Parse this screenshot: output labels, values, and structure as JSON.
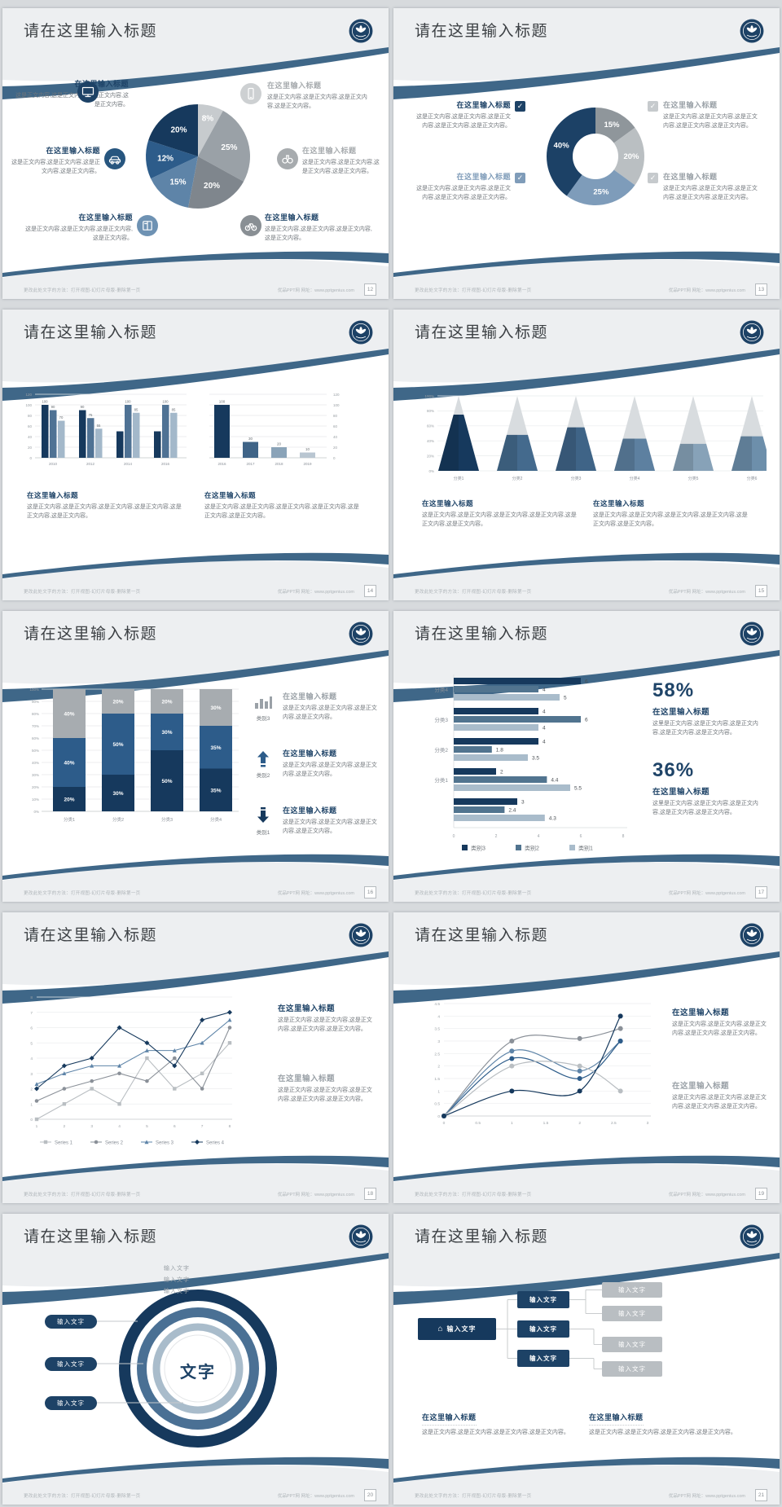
{
  "page": {
    "background": "#d7dadd"
  },
  "footer": {
    "left": "更改此处文字的方法：打开视图-幻灯片母版-删除第一页",
    "right": "优品PPT网  网址：www.pptgenius.com"
  },
  "strings": {
    "slide_title": "请在这里输入标题",
    "item_heading": "在这里输入标题",
    "input_text": "输入文字",
    "center_text": "文字"
  },
  "bodies": {
    "b2": "这是正文内容,这是正文内容,这是正文内容,这是正文内容。",
    "b3": "这是正文内容,这是正文内容,这是正文内容,这是正文内容,这是正文内容。",
    "b4": "这是正文内容,这是正文内容,这是正文内容,这是正文内容,这是正文内容,这是正文内容。",
    "b58": "这里是正文内容,这是正文内容,这是正文内容,这是正文内容,这是正文内容。"
  },
  "slides": [
    {
      "page_no": "12",
      "title": "请在这里输入标题",
      "type": "pie",
      "chart_data": {
        "type": "pie",
        "unit": "%",
        "slices": [
          {
            "label": "8%",
            "value": 8,
            "color": "#c7cbce"
          },
          {
            "label": "25%",
            "value": 25,
            "color": "#9aa1a7"
          },
          {
            "label": "20%",
            "value": 20,
            "color": "#7f868d"
          },
          {
            "label": "15%",
            "value": 15,
            "color": "#5e84a8"
          },
          {
            "label": "12%",
            "value": 12,
            "color": "#2d5c8a"
          },
          {
            "label": "20%",
            "value": 20,
            "color": "#16395d"
          }
        ]
      },
      "items_left": [
        {
          "icon": "monitor-icon",
          "icon_color": "#1d4266",
          "heading_color": "#1f4468",
          "body_key": "b2"
        },
        {
          "icon": "car-icon",
          "icon_color": "#27567f",
          "heading_color": "#1f4468",
          "body_key": "b2"
        },
        {
          "icon": "book-icon",
          "icon_color": "#6e92b3",
          "heading_color": "#1f4468",
          "body_key": "b2"
        }
      ],
      "items_right": [
        {
          "icon": "phone-icon",
          "icon_color": "#cdd0d2",
          "heading_color": "#a7abae",
          "body_key": "b2"
        },
        {
          "icon": "binoculars-icon",
          "icon_color": "#a7abae",
          "heading_color": "#a7abae",
          "body_key": "b2"
        },
        {
          "icon": "bicycle-icon",
          "icon_color": "#898f94",
          "heading_color": "#1f4468",
          "body_key": "b2"
        }
      ]
    },
    {
      "page_no": "13",
      "title": "请在这里输入标题",
      "type": "donut",
      "chart_data": {
        "type": "donut",
        "unit": "%",
        "slices": [
          {
            "label": "15%",
            "value": 15,
            "color": "#8f969b"
          },
          {
            "label": "20%",
            "value": 20,
            "color": "#babfc2"
          },
          {
            "label": "25%",
            "value": 25,
            "color": "#7e9cba"
          },
          {
            "label": "40%",
            "value": 40,
            "color": "#1c4166"
          }
        ]
      },
      "items_left": [
        {
          "heading_color": "#1d4266",
          "check_color": "#1d4266",
          "body_key": "b3"
        },
        {
          "heading_color": "#7f9cb9",
          "check_color": "#7f9cb9",
          "body_key": "b3"
        }
      ],
      "items_right": [
        {
          "heading_color": "#9aa1a7",
          "check_color": "#c6cacd",
          "body_key": "b3"
        },
        {
          "heading_color": "#9aa1a7",
          "check_color": "#c6cacd",
          "body_key": "b3"
        }
      ]
    },
    {
      "page_no": "14",
      "title": "请在这里输入标题",
      "type": "bars2",
      "chart_data": [
        {
          "type": "bar",
          "categories": [
            "2010",
            "2012",
            "2014",
            "2016"
          ],
          "ylim": [
            0,
            120
          ],
          "y_ticks": [
            0,
            20,
            40,
            60,
            80,
            100,
            120
          ],
          "groups": [
            [
              100,
              90,
              70
            ],
            [
              90,
              75,
              55
            ],
            [
              50,
              100,
              85
            ],
            [
              50,
              100,
              85
            ]
          ],
          "group_labels": [
            [
              "100",
              "90",
              "70"
            ],
            [
              "90",
              "75",
              "55"
            ],
            [
              "",
              "100",
              "85"
            ],
            [
              "",
              "100",
              "85"
            ]
          ],
          "colors": [
            "#16395d",
            "#4f7294",
            "#a3b8ca"
          ]
        },
        {
          "type": "bar",
          "categories": [
            "2016",
            "2017",
            "2018",
            "2019"
          ],
          "ylim": [
            0,
            120
          ],
          "y_ticks": [
            0,
            20,
            40,
            60,
            80,
            100,
            120
          ],
          "axis_side": "right",
          "values": [
            100,
            30,
            20,
            10
          ],
          "labels": [
            "100",
            "30",
            "20",
            "10"
          ],
          "colors": [
            "#16395d",
            "#3f6487",
            "#8aa3b8",
            "#b9c6d1"
          ]
        }
      ],
      "blocks": [
        {
          "heading_color": "#1f4468",
          "body_key": "b4"
        },
        {
          "heading_color": "#1f4468",
          "body_key": "b4"
        }
      ]
    },
    {
      "page_no": "15",
      "title": "请在这里输入标题",
      "type": "cone",
      "chart_data": {
        "type": "cone",
        "ylim": [
          0,
          100
        ],
        "y_ticks": [
          "0%",
          "20%",
          "40%",
          "60%",
          "80%",
          "100%"
        ],
        "categories": [
          "分类1",
          "分类2",
          "分类3",
          "分类4",
          "分类5",
          "分类6"
        ],
        "values": [
          75,
          48,
          58,
          43,
          36,
          46
        ],
        "colors": [
          "#16395d",
          "#446a8d",
          "#3f6487",
          "#5d80a0",
          "#87a2b8",
          "#6d8fab"
        ]
      },
      "blocks": [
        {
          "heading_color": "#1f4468",
          "body_key": "b4"
        },
        {
          "heading_color": "#1f4468",
          "body_key": "b4"
        }
      ]
    },
    {
      "page_no": "16",
      "title": "请在这里输入标题",
      "type": "stacked",
      "chart_data": {
        "type": "stacked-bar",
        "categories": [
          "分类1",
          "分类2",
          "分类3",
          "分类4"
        ],
        "y_ticks": [
          "0%",
          "10%",
          "20%",
          "30%",
          "40%",
          "50%",
          "60%",
          "70%",
          "80%",
          "90%",
          "100%"
        ],
        "series": [
          {
            "name": "bottom",
            "color": "#16395d",
            "values": [
              20,
              30,
              50,
              35
            ]
          },
          {
            "name": "middle",
            "color": "#2d5c8a",
            "values": [
              40,
              50,
              30,
              35
            ]
          },
          {
            "name": "top",
            "color": "#a7acb0",
            "values": [
              40,
              20,
              20,
              30
            ]
          }
        ],
        "labels": [
          [
            "20%",
            "40%",
            "40%"
          ],
          [
            "30%",
            "50%",
            "20%"
          ],
          [
            "50%",
            "30%",
            "20%"
          ],
          [
            "35%",
            "35%",
            "30%"
          ]
        ]
      },
      "items": [
        {
          "icon": "bar-chart-icon",
          "icon_color": "#9aa1a7",
          "tag": "类别3",
          "heading_color": "#9aa1a7",
          "body_key": "b2"
        },
        {
          "icon": "arrow-up-icon",
          "icon_color": "#2d5c8a",
          "tag": "类别2",
          "heading_color": "#1f4468",
          "body_key": "b2"
        },
        {
          "icon": "arrow-down-icon",
          "icon_color": "#16395d",
          "tag": "类别1",
          "heading_color": "#1f4468",
          "body_key": "b2"
        }
      ]
    },
    {
      "page_no": "17",
      "title": "请在这里输入标题",
      "type": "hbar",
      "chart_data": {
        "type": "bar-horizontal",
        "xlim": [
          0,
          8
        ],
        "x_ticks": [
          0,
          2,
          4,
          6,
          8
        ],
        "groups": [
          {
            "label": "分类4",
            "values": [
              6,
              4,
              5
            ]
          },
          {
            "label": "分类3",
            "values": [
              4,
              6,
              4
            ]
          },
          {
            "label": "分类2",
            "values": [
              4,
              1.8,
              3.5
            ]
          },
          {
            "label": "分类1",
            "values": [
              2,
              4.4,
              5.5
            ]
          },
          {
            "label": "",
            "values": [
              3,
              2.4,
              4.3
            ]
          }
        ],
        "legend": [
          {
            "name": "类别3",
            "color": "#16395d"
          },
          {
            "name": "类别2",
            "color": "#51748f"
          },
          {
            "name": "类别1",
            "color": "#a9bccb"
          }
        ]
      },
      "stats": [
        {
          "pct": "58%",
          "heading_color": "#1f4468",
          "body_key": "b58"
        },
        {
          "pct": "36%",
          "heading_color": "#1f4468",
          "body_key": "b58"
        }
      ]
    },
    {
      "page_no": "18",
      "title": "请在这里输入标题",
      "type": "line",
      "chart_data": {
        "type": "line",
        "x": [
          1,
          2,
          3,
          4,
          5,
          6,
          7,
          8
        ],
        "ylim": [
          0,
          8
        ],
        "y_ticks": [
          0,
          1,
          2,
          3,
          4,
          5,
          6,
          7,
          8
        ],
        "series": [
          {
            "name": "Series 1",
            "color": "#b9bec2",
            "marker": "square",
            "values": [
              0,
              1,
              2,
              1,
              4,
              2,
              3,
              5
            ]
          },
          {
            "name": "Series 2",
            "color": "#8a9098",
            "marker": "circle",
            "values": [
              1.2,
              2,
              2.5,
              3,
              2.5,
              4,
              2,
              6
            ]
          },
          {
            "name": "Series 3",
            "color": "#5e84a8",
            "marker": "triangle",
            "values": [
              2.3,
              3,
              3.5,
              3.5,
              4.5,
              4.5,
              5,
              6.5
            ]
          },
          {
            "name": "Series 4",
            "color": "#16395d",
            "marker": "diamond",
            "values": [
              2,
              3.5,
              4,
              6,
              5,
              3.5,
              6.5,
              7
            ]
          }
        ]
      },
      "blocks": [
        {
          "heading_color": "#1f4468",
          "body_key": "b3"
        },
        {
          "heading_color": "#9aa1a7",
          "body_key": "b3"
        }
      ]
    },
    {
      "page_no": "19",
      "title": "请在这里输入标题",
      "type": "curve",
      "chart_data": {
        "type": "line-smooth",
        "x": [
          0,
          1,
          2,
          2.6
        ],
        "x_ticks": [
          "0",
          "0.5",
          "1",
          "1.5",
          "2",
          "2.5",
          "3"
        ],
        "xlim": [
          0,
          3
        ],
        "ylim": [
          0,
          4.5
        ],
        "y_ticks": [
          "0",
          "0.5",
          "1",
          "1.5",
          "2",
          "2.5",
          "3",
          "3.5",
          "4",
          "4.5"
        ],
        "series": [
          {
            "color": "#8a9098",
            "values": [
              0,
              3,
              3.1,
              3.5
            ]
          },
          {
            "color": "#5e84a8",
            "values": [
              0,
              2.6,
              1.8,
              3
            ]
          },
          {
            "color": "#2d5c8a",
            "values": [
              0,
              2.3,
              1.5,
              3
            ]
          },
          {
            "color": "#b9bec2",
            "values": [
              0,
              2,
              2,
              1
            ]
          },
          {
            "color": "#16395d",
            "values": [
              0,
              1,
              1,
              4
            ]
          }
        ]
      },
      "blocks": [
        {
          "heading_color": "#1f4468",
          "body_key": "b3"
        },
        {
          "heading_color": "#9aa1a7",
          "body_key": "b3"
        }
      ]
    },
    {
      "page_no": "20",
      "title": "请在这里输入标题",
      "type": "rings",
      "rings": {
        "colors": [
          "#16395d",
          "#4a7094",
          "#a9bccb"
        ],
        "top_labels": [
          "输入文字",
          "输入文字",
          "输入文字"
        ],
        "left_buttons": [
          "输入文字",
          "输入文字",
          "输入文字"
        ],
        "center": "文字"
      }
    },
    {
      "page_no": "21",
      "title": "请在这里输入标题",
      "type": "flow",
      "flow": {
        "root": "输入文字",
        "mid": [
          "输入文字",
          "输入文字",
          "输入文字"
        ],
        "right": [
          "输入文字",
          "输入文字",
          "输入文字",
          "输入文字"
        ]
      },
      "blocks": [
        {
          "heading_color": "#1f4468",
          "body_key": "b2"
        },
        {
          "heading_color": "#1f4468",
          "body_key": "b2"
        }
      ]
    }
  ]
}
